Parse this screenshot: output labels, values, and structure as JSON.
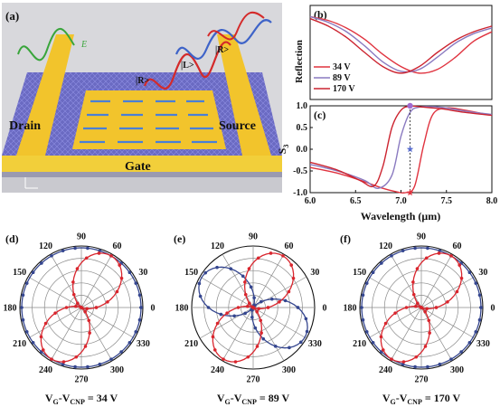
{
  "panel_a": {
    "label": "(a)",
    "drain": "Drain",
    "source": "Source",
    "gate": "Gate",
    "wave_labels": [
      "|R>",
      "|L>",
      "|R>"
    ]
  },
  "panels": {
    "b": "(b)",
    "c": "(c)",
    "d": "(d)",
    "e": "(e)",
    "f": "(f)"
  },
  "colors": {
    "v34": "#e0333f",
    "v89": "#8a7ac0",
    "v170": "#cc2430",
    "polar_red": "#d9262e",
    "polar_blue": "#35468f",
    "gate_yellow": "#f3c91f",
    "substrate": "#5a5ab4"
  },
  "chart_data": [
    {
      "type": "line",
      "panel": "(b)",
      "ylabel": "Reflection",
      "xlim": [
        6.0,
        8.0
      ],
      "ylim": [
        0,
        1
      ],
      "legend": "left-middle",
      "series": [
        {
          "name": "34 V",
          "x": [
            6.0,
            6.2,
            6.4,
            6.6,
            6.8,
            7.0,
            7.2,
            7.4,
            7.6,
            7.8,
            8.0
          ],
          "values": [
            0.88,
            0.84,
            0.76,
            0.64,
            0.48,
            0.35,
            0.28,
            0.32,
            0.45,
            0.62,
            0.72
          ]
        },
        {
          "name": "89 V",
          "x": [
            6.0,
            6.2,
            6.4,
            6.6,
            6.8,
            7.0,
            7.2,
            7.4,
            7.6,
            7.8,
            8.0
          ],
          "values": [
            0.88,
            0.82,
            0.72,
            0.57,
            0.4,
            0.3,
            0.32,
            0.45,
            0.6,
            0.7,
            0.76
          ]
        },
        {
          "name": "170 V",
          "x": [
            6.0,
            6.2,
            6.4,
            6.6,
            6.8,
            7.0,
            7.2,
            7.4,
            7.6,
            7.8,
            8.0
          ],
          "values": [
            0.86,
            0.78,
            0.66,
            0.5,
            0.35,
            0.28,
            0.35,
            0.5,
            0.63,
            0.72,
            0.78
          ]
        }
      ]
    },
    {
      "type": "line",
      "panel": "(c)",
      "ylabel": "S3",
      "xlabel": "Wavelength (μm)",
      "xticks": [
        "6.0",
        "6.5",
        "7.0",
        "7.5",
        "8.0"
      ],
      "yticks": [
        "1.0",
        "0.5",
        "0.0",
        "-0.5",
        "-1.0"
      ],
      "xlim": [
        6.0,
        8.0
      ],
      "ylim": [
        -1.0,
        1.0
      ],
      "marker_x": 7.1,
      "series": [
        {
          "name": "34 V",
          "x": [
            6.0,
            6.3,
            6.6,
            6.8,
            6.95,
            7.05,
            7.15,
            7.25,
            7.35,
            7.5,
            7.7,
            8.0
          ],
          "values": [
            -0.42,
            -0.55,
            -0.75,
            -0.9,
            -0.98,
            -1.0,
            -0.85,
            0.1,
            0.8,
            0.95,
            0.9,
            0.78
          ]
        },
        {
          "name": "89 V",
          "x": [
            6.0,
            6.3,
            6.6,
            6.75,
            6.9,
            7.0,
            7.1,
            7.2,
            7.35,
            7.5,
            7.7,
            8.0
          ],
          "values": [
            -0.35,
            -0.5,
            -0.72,
            -0.9,
            -0.6,
            0.3,
            0.85,
            0.97,
            0.98,
            0.95,
            0.88,
            0.8
          ]
        },
        {
          "name": "170 V",
          "x": [
            6.0,
            6.3,
            6.55,
            6.7,
            6.8,
            6.9,
            7.0,
            7.1,
            7.25,
            7.45,
            7.7,
            8.0
          ],
          "values": [
            -0.3,
            -0.48,
            -0.72,
            -0.85,
            -0.4,
            0.5,
            0.9,
            0.99,
            0.97,
            0.93,
            0.85,
            0.78
          ]
        }
      ],
      "markers": [
        {
          "label": "34 V",
          "y": -1.0,
          "color": "#e0333f",
          "shape": "star"
        },
        {
          "label": "89 V",
          "y": 0.0,
          "color": "#5a6fd0",
          "shape": "star"
        },
        {
          "label": "170 V",
          "y": 1.0,
          "color": "#a06ad0",
          "shape": "circle"
        }
      ]
    },
    {
      "type": "polar",
      "panel": "(d)",
      "caption_value": "34 V",
      "angle_labels": [
        "0",
        "30",
        "60",
        "90",
        "120",
        "150",
        "180",
        "210",
        "240",
        "270",
        "300",
        "330"
      ],
      "red": {
        "form": "cos2",
        "center_deg": 60,
        "amp": 1.0
      },
      "blue": {
        "form": "circle",
        "radius": 1.0
      }
    },
    {
      "type": "polar",
      "panel": "(e)",
      "caption_value": "89 V",
      "angle_labels": [
        "0",
        "30",
        "60",
        "90",
        "120",
        "150",
        "180",
        "210",
        "240",
        "270",
        "300",
        "330"
      ],
      "red": {
        "form": "cos2",
        "center_deg": 60,
        "amp": 1.0
      },
      "blue": {
        "form": "cos2",
        "center_deg": 150,
        "amp": 1.0
      }
    },
    {
      "type": "polar",
      "panel": "(f)",
      "caption_value": "170 V",
      "angle_labels": [
        "0",
        "30",
        "60",
        "90",
        "120",
        "150",
        "180",
        "210",
        "240",
        "270",
        "300",
        "330"
      ],
      "red": {
        "form": "cos2",
        "center_deg": 60,
        "amp": 1.0
      },
      "blue": {
        "form": "circle",
        "radius": 1.0
      }
    }
  ],
  "captions": {
    "d": {
      "prefix": "V",
      "sub1": "G",
      "mid": "-V",
      "sub2": "CNP",
      "value": " = 34 V"
    },
    "e": {
      "prefix": "V",
      "sub1": "G",
      "mid": "-V",
      "sub2": "CNP",
      "value": " = 89 V"
    },
    "f": {
      "prefix": "V",
      "sub1": "G",
      "mid": "-V",
      "sub2": "CNP",
      "value": " = 170 V"
    }
  }
}
